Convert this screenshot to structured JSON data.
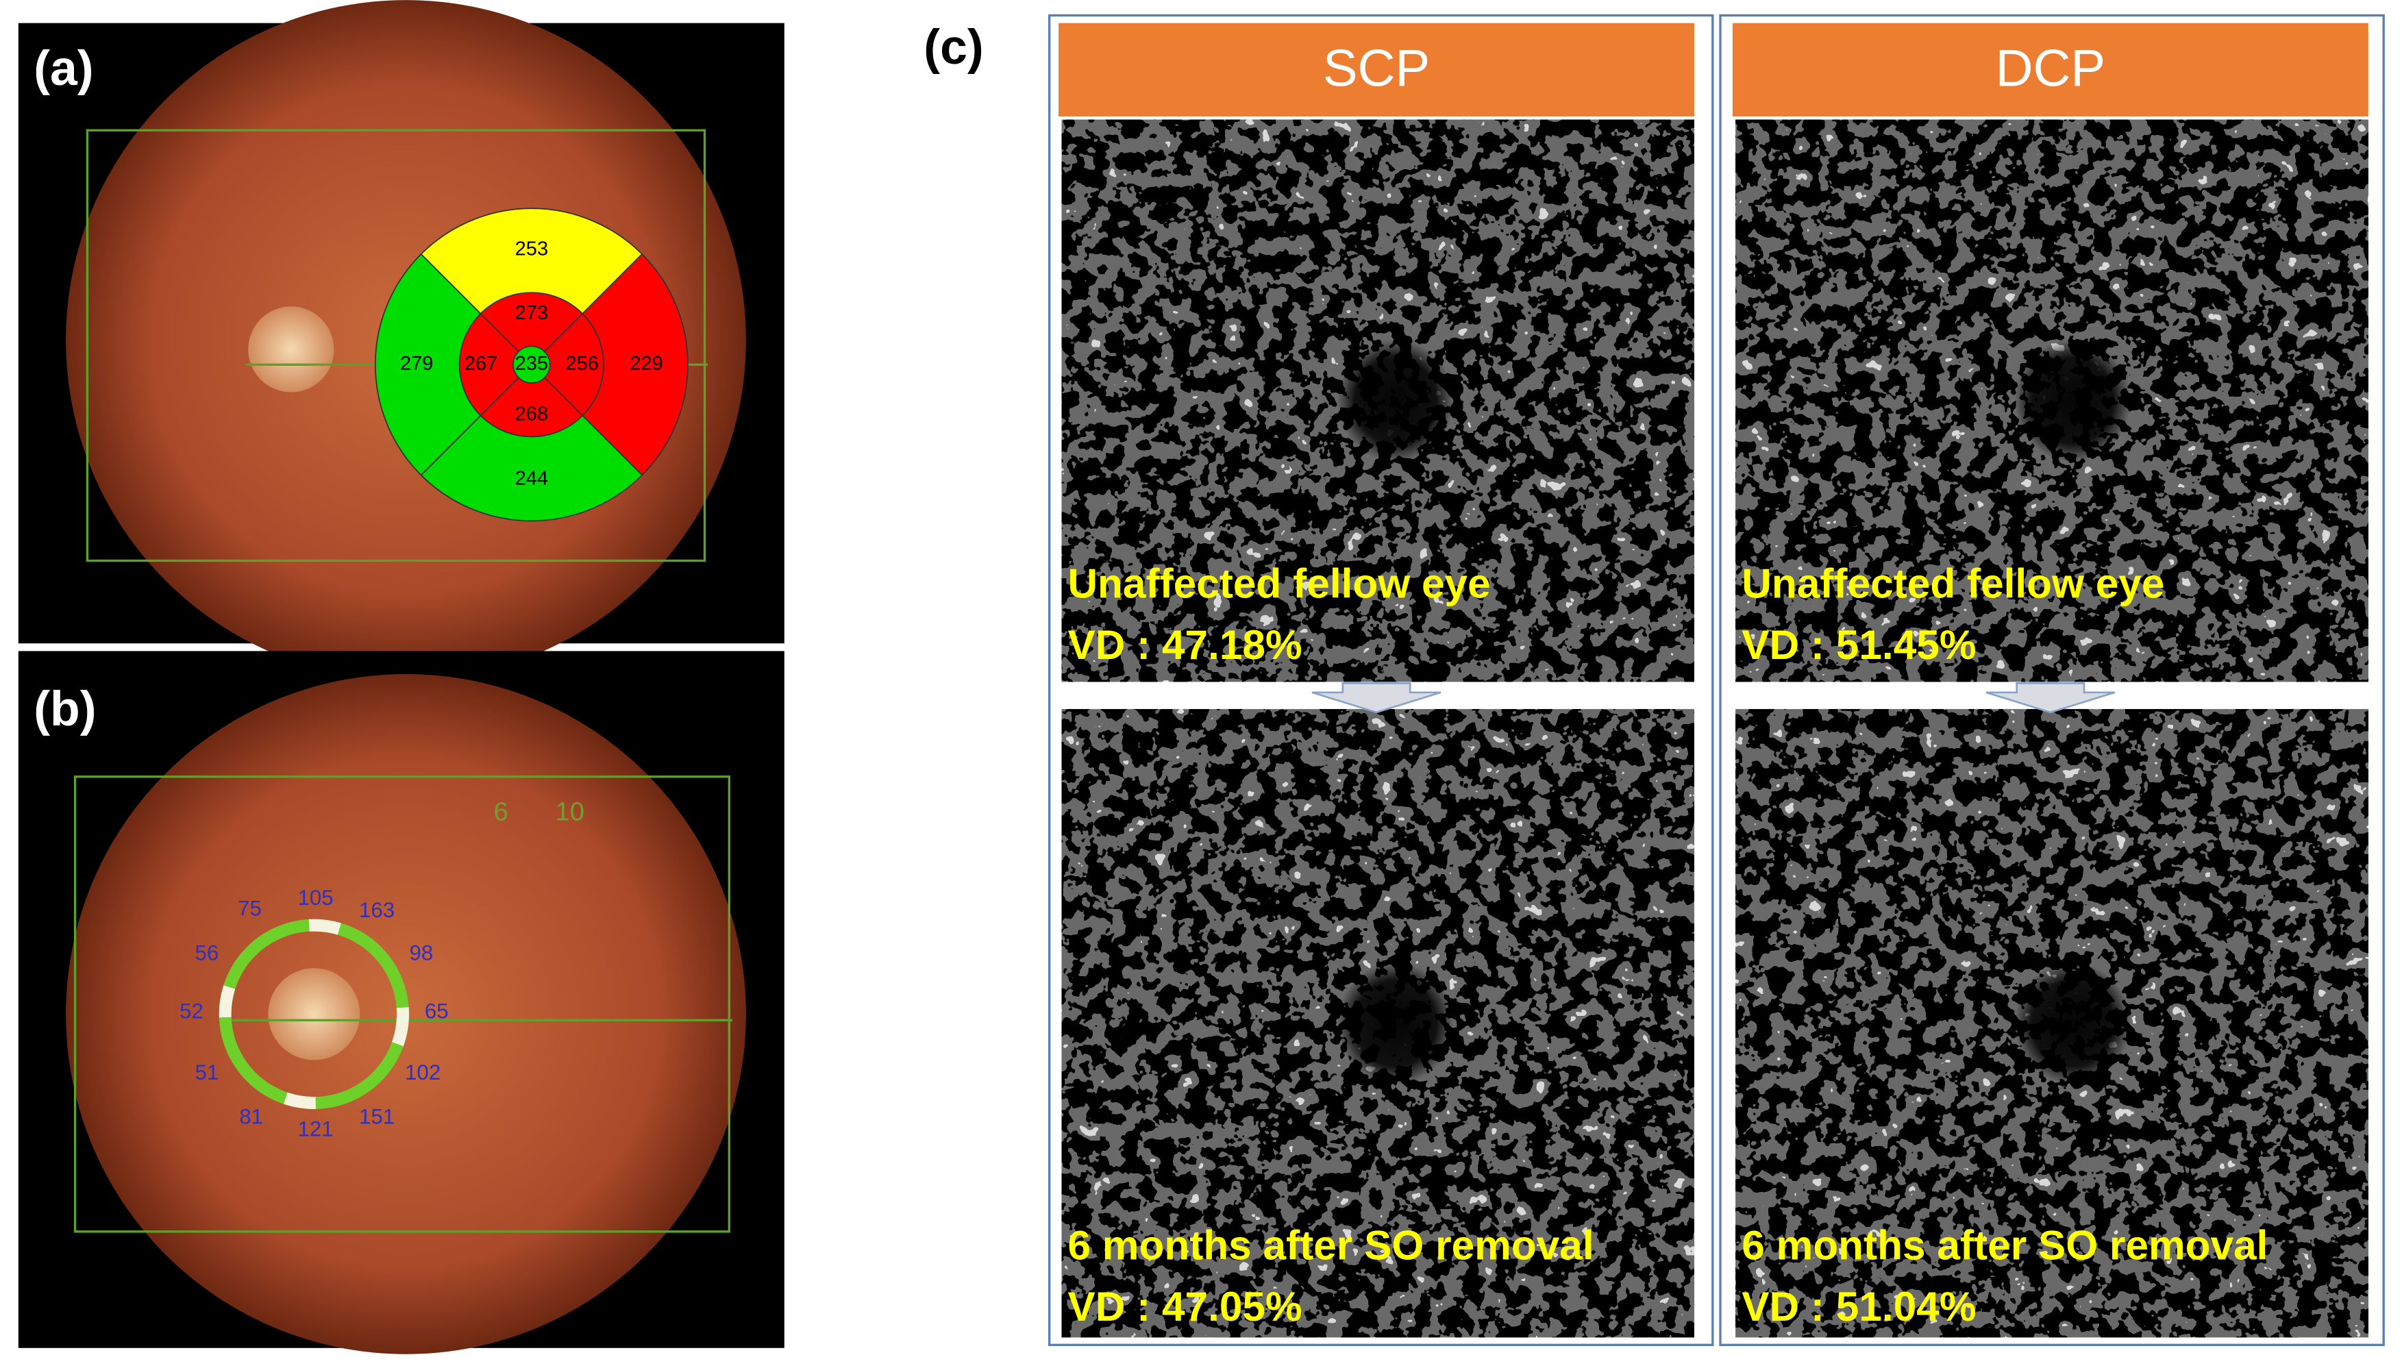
{
  "panel_a": {
    "label": "(a)",
    "etdrs": {
      "center": {
        "value": 235,
        "color": "#00dd00"
      },
      "inner": [
        {
          "value": 273,
          "color": "#ff0000"
        },
        {
          "value": 256,
          "color": "#ff0000"
        },
        {
          "value": 268,
          "color": "#ff0000"
        },
        {
          "value": 267,
          "color": "#ff0000"
        }
      ],
      "outer": [
        {
          "value": 253,
          "color": "#ffff00"
        },
        {
          "value": 229,
          "color": "#ff0000"
        },
        {
          "value": 244,
          "color": "#00dd00"
        },
        {
          "value": 279,
          "color": "#00dd00"
        }
      ]
    }
  },
  "panel_b": {
    "label": "(b)",
    "scale": [
      "6",
      "10"
    ],
    "rnfl": [
      75,
      105,
      163,
      98,
      65,
      102,
      151,
      121,
      81,
      51,
      52,
      56
    ]
  },
  "panel_c": {
    "label": "(c)",
    "columns": [
      {
        "title": "SCP",
        "images": [
          {
            "caption": "Unaffected fellow eye",
            "vd": "VD : 47.18%"
          },
          {
            "caption": "6 months after SO removal",
            "vd": "VD : 47.05%"
          }
        ]
      },
      {
        "title": "DCP",
        "images": [
          {
            "caption": "Unaffected fellow eye",
            "vd": "VD : 51.45%"
          },
          {
            "caption": "6 months after SO removal",
            "vd": "VD : 51.04%"
          }
        ]
      }
    ]
  }
}
